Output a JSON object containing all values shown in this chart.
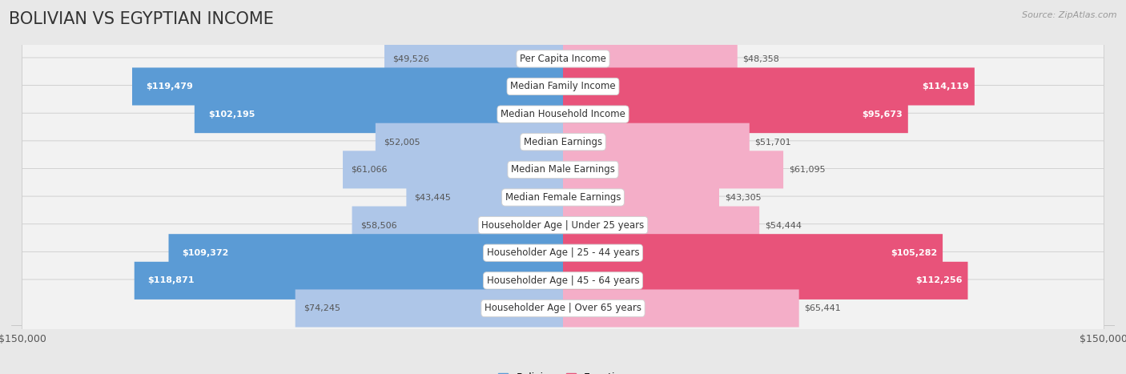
{
  "title": "BOLIVIAN VS EGYPTIAN INCOME",
  "source": "Source: ZipAtlas.com",
  "categories": [
    "Per Capita Income",
    "Median Family Income",
    "Median Household Income",
    "Median Earnings",
    "Median Male Earnings",
    "Median Female Earnings",
    "Householder Age | Under 25 years",
    "Householder Age | 25 - 44 years",
    "Householder Age | 45 - 64 years",
    "Householder Age | Over 65 years"
  ],
  "bolivian_values": [
    49526,
    119479,
    102195,
    52005,
    61066,
    43445,
    58506,
    109372,
    118871,
    74245
  ],
  "egyptian_values": [
    48358,
    114119,
    95673,
    51701,
    61095,
    43305,
    54444,
    105282,
    112256,
    65441
  ],
  "bolivian_labels": [
    "$49,526",
    "$119,479",
    "$102,195",
    "$52,005",
    "$61,066",
    "$43,445",
    "$58,506",
    "$109,372",
    "$118,871",
    "$74,245"
  ],
  "egyptian_labels": [
    "$48,358",
    "$114,119",
    "$95,673",
    "$51,701",
    "$61,095",
    "$43,305",
    "$54,444",
    "$105,282",
    "$112,256",
    "$65,441"
  ],
  "max_value": 150000,
  "bolivian_color_light": "#aec6e8",
  "bolivian_color_dark": "#5b9bd5",
  "egyptian_color_light": "#f4aec8",
  "egyptian_color_dark": "#e8537a",
  "background_color": "#e8e8e8",
  "row_bg_color": "#f2f2f2",
  "label_threshold": 80000,
  "title_fontsize": 15,
  "axis_label_fontsize": 9,
  "bar_label_fontsize": 8,
  "category_fontsize": 8.5,
  "legend_fontsize": 9,
  "source_fontsize": 8
}
